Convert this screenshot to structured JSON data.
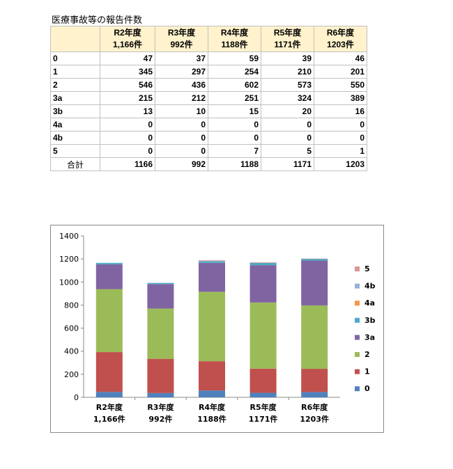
{
  "title": "医療事故等の報告件数",
  "table": {
    "columns": [
      {
        "line1": "R2年度",
        "line2": "1,166件"
      },
      {
        "line1": "R3年度",
        "line2": "992件"
      },
      {
        "line1": "R4年度",
        "line2": "1188件"
      },
      {
        "line1": "R5年度",
        "line2": "1171件"
      },
      {
        "line1": "R6年度",
        "line2": "1203件"
      }
    ],
    "rows": [
      {
        "label": "0",
        "values": [
          "47",
          "37",
          "59",
          "39",
          "46"
        ]
      },
      {
        "label": "1",
        "values": [
          "345",
          "297",
          "254",
          "210",
          "201"
        ]
      },
      {
        "label": "2",
        "values": [
          "546",
          "436",
          "602",
          "573",
          "550"
        ]
      },
      {
        "label": "3a",
        "values": [
          "215",
          "212",
          "251",
          "324",
          "389"
        ]
      },
      {
        "label": "3b",
        "values": [
          "13",
          "10",
          "15",
          "20",
          "16"
        ]
      },
      {
        "label": "4a",
        "values": [
          "0",
          "0",
          "0",
          "0",
          "0"
        ]
      },
      {
        "label": "4b",
        "values": [
          "0",
          "0",
          "0",
          "0",
          "0"
        ]
      },
      {
        "label": "5",
        "values": [
          "0",
          "0",
          "7",
          "5",
          "1"
        ]
      }
    ],
    "total": {
      "label": "合計",
      "values": [
        "1166",
        "992",
        "1188",
        "1171",
        "1203"
      ]
    }
  },
  "chart_data": {
    "type": "bar",
    "stacked": true,
    "categories": [
      [
        "R2年度",
        "1,166件"
      ],
      [
        "R3年度",
        "992件"
      ],
      [
        "R4年度",
        "1188件"
      ],
      [
        "R5年度",
        "1171件"
      ],
      [
        "R6年度",
        "1203件"
      ]
    ],
    "series": [
      {
        "name": "0",
        "color": "#4f81bd",
        "values": [
          47,
          37,
          59,
          39,
          46
        ]
      },
      {
        "name": "1",
        "color": "#c0504d",
        "values": [
          345,
          297,
          254,
          210,
          201
        ]
      },
      {
        "name": "2",
        "color": "#9bbb59",
        "values": [
          546,
          436,
          602,
          573,
          550
        ]
      },
      {
        "name": "3a",
        "color": "#8064a2",
        "values": [
          215,
          212,
          251,
          324,
          389
        ]
      },
      {
        "name": "3b",
        "color": "#4bacc6",
        "values": [
          13,
          10,
          15,
          20,
          16
        ]
      },
      {
        "name": "4a",
        "color": "#f79646",
        "values": [
          0,
          0,
          0,
          0,
          0
        ]
      },
      {
        "name": "4b",
        "color": "#95b3d7",
        "values": [
          0,
          0,
          0,
          0,
          0
        ]
      },
      {
        "name": "5",
        "color": "#d99694",
        "values": [
          0,
          0,
          7,
          5,
          1
        ]
      }
    ],
    "ylim": [
      0,
      1400
    ],
    "yticks": [
      0,
      200,
      400,
      600,
      800,
      1000,
      1200,
      1400
    ],
    "grid": false,
    "legend": "right"
  }
}
